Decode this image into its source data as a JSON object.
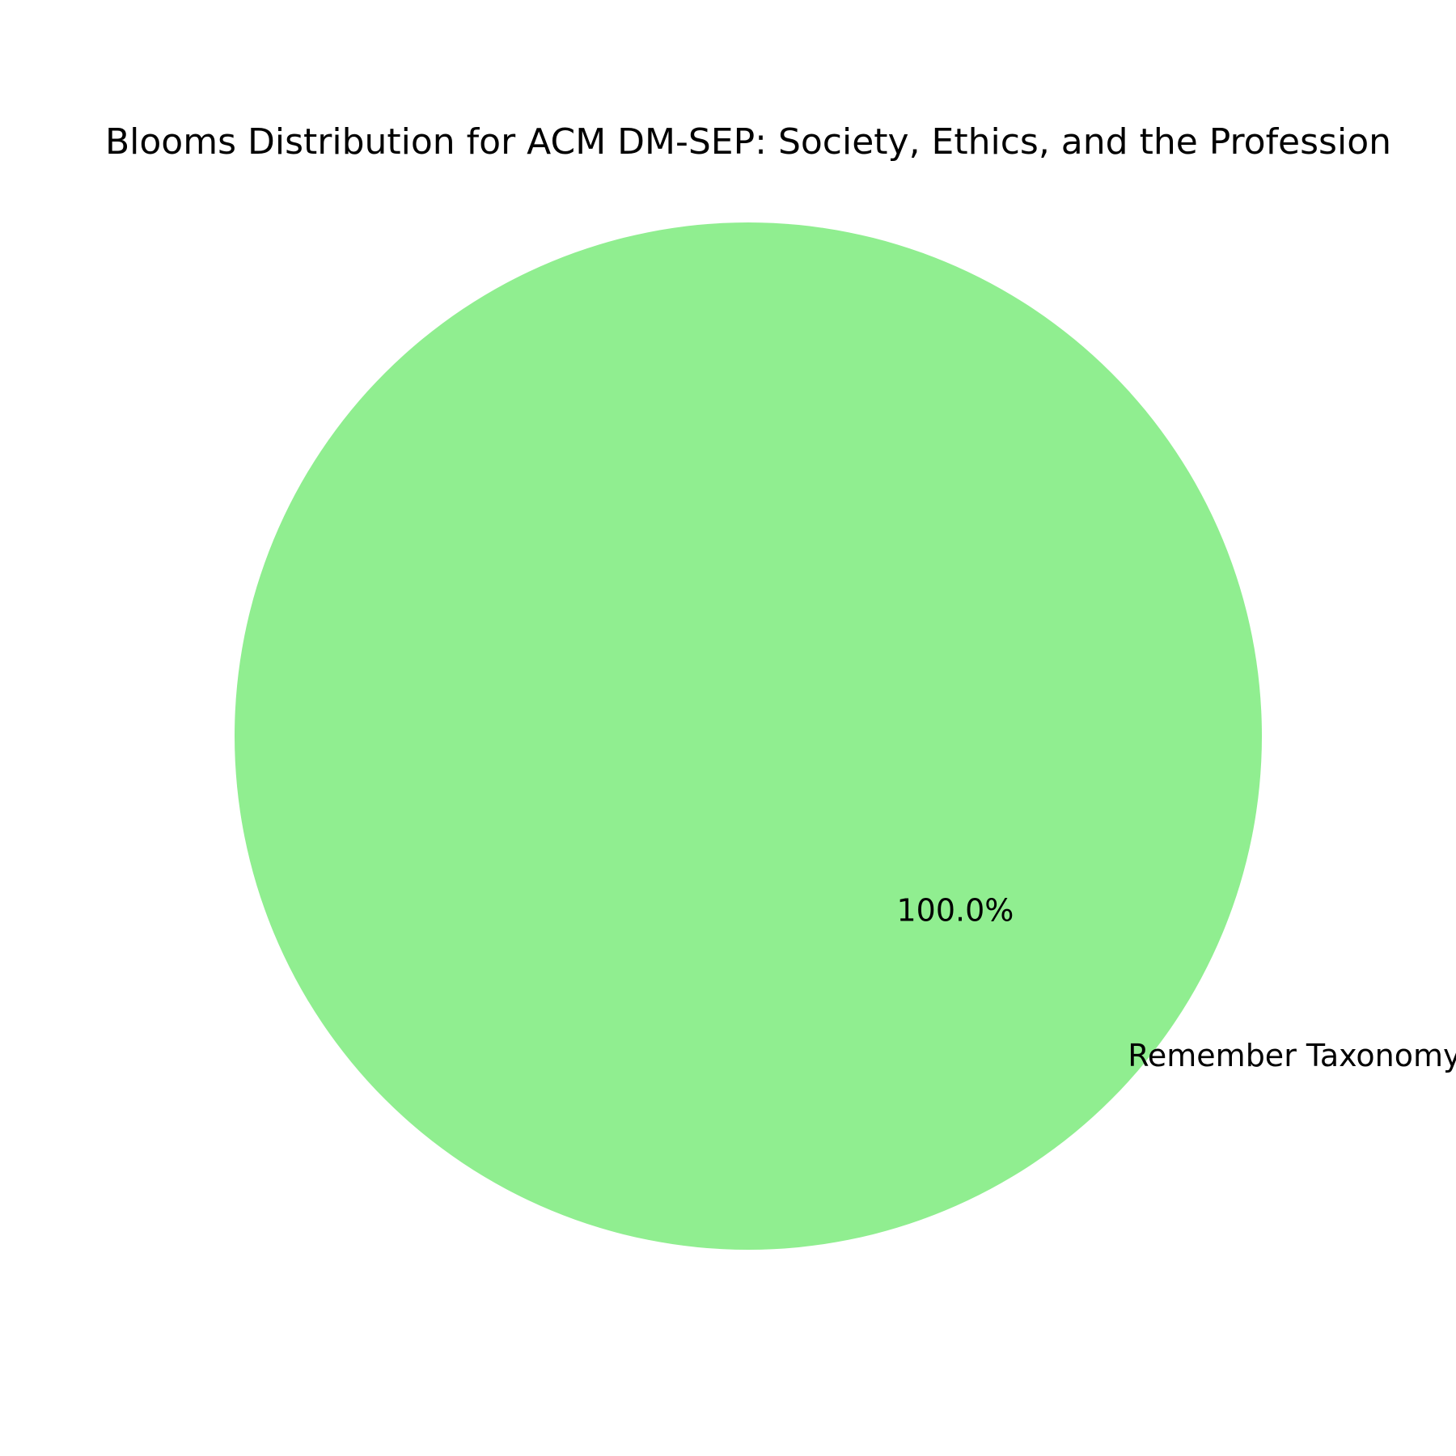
{
  "chart_data": {
    "type": "pie",
    "title": "Blooms Distribution for ACM DM-SEP: Society, Ethics, and the Profession",
    "slices": [
      {
        "label": "Remember Taxonomy",
        "value": 100.0,
        "percent_label": "100.0%",
        "color": "#90ee90"
      }
    ]
  }
}
